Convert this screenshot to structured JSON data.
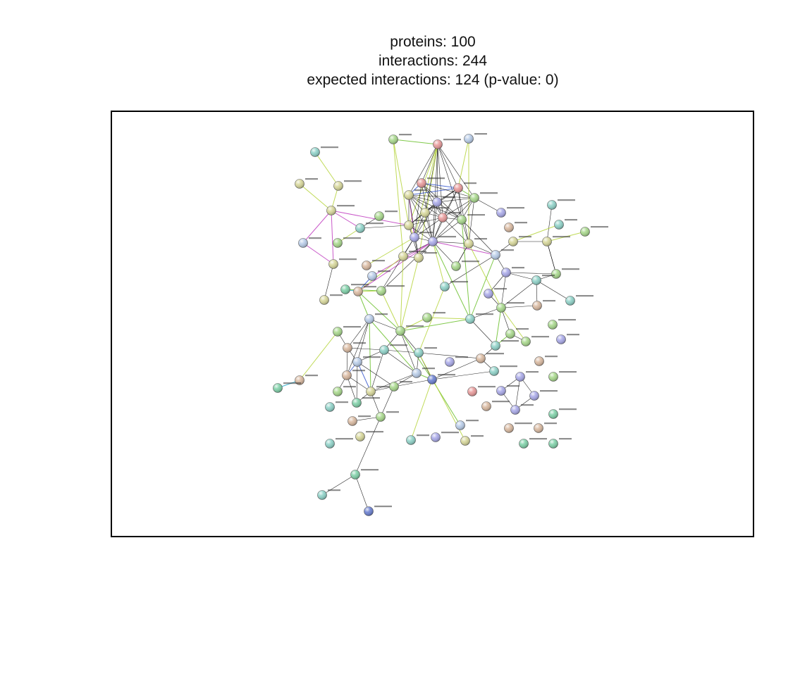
{
  "header": {
    "proteins_line": "proteins: 100",
    "interactions_line": "interactions: 244",
    "expected_line": "expected interactions: 124 (p-value: 0)"
  },
  "network": {
    "node_label_color": "#333333",
    "edge_colors": [
      "#000000",
      "#6abf2a",
      "#b5d33a",
      "#3355cc",
      "#c03cc0",
      "#d0c020",
      "#22aacc",
      "#cc3333"
    ],
    "node_colors": [
      "#a8d88c",
      "#8fd2c8",
      "#b8cce8",
      "#d7d79a",
      "#d9b9a0",
      "#a9a9e8",
      "#e89a9a",
      "#cde8a0",
      "#7fd0a8",
      "#6a7fd0"
    ]
  }
}
